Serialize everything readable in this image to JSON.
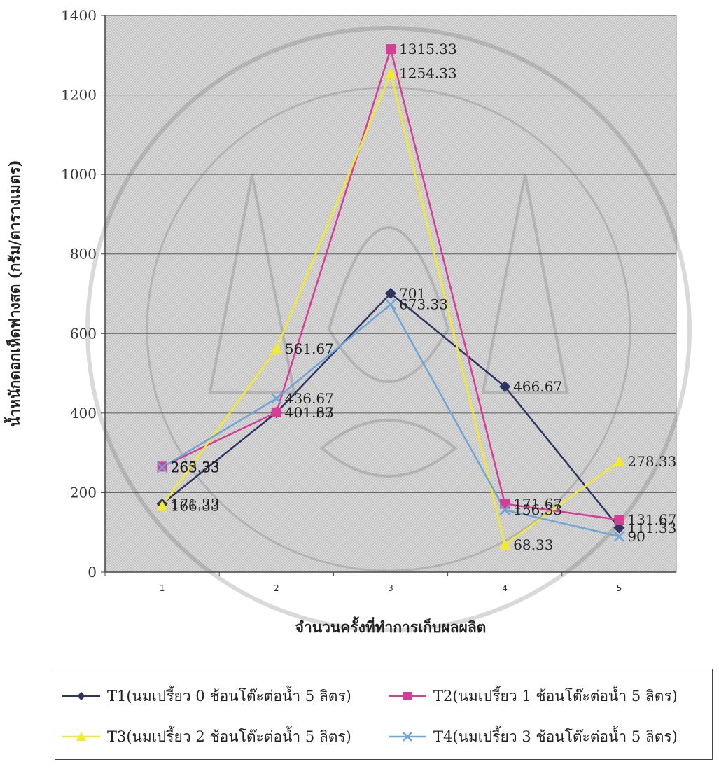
{
  "chart_data": {
    "type": "line",
    "ylabel": "น้ำหนักดอกเห็ดฟางสด (กรัม/ตารางเมตร)",
    "xlabel": "จำนวนครั้งที่ทำการเก็บผลผลิต",
    "categories": [
      "1",
      "2",
      "3",
      "4",
      "5"
    ],
    "ylim": [
      0,
      1400
    ],
    "yticks": [
      "0",
      "200",
      "400",
      "600",
      "800",
      "1000",
      "1200",
      "1400"
    ],
    "grid": true,
    "legend_position": "bottom",
    "series": [
      {
        "name": "T1(นมเปรี้ยว 0 ช้อนโต๊ะต่อน้ำ 5 ลิตร)",
        "values": [
          171.33,
          401.33,
          701,
          466.67,
          111.33
        ],
        "labels": [
          "171.33",
          "401.33",
          "701",
          "466.67",
          "111.33"
        ],
        "color": "#2e3563",
        "marker": "diamond"
      },
      {
        "name": "T2(นมเปรี้ยว 1 ช้อนโต๊ะต่อน้ำ 5 ลิตร)",
        "values": [
          265.33,
          401.67,
          1315.33,
          171.67,
          131.67
        ],
        "labels": [
          "265.33",
          "401.67",
          "1315.33",
          "171.67",
          "131.67"
        ],
        "color": "#d63d95",
        "marker": "square"
      },
      {
        "name": "T3(นมเปรี้ยว 2 ช้อนโต๊ะต่อน้ำ 5 ลิตร)",
        "values": [
          166.33,
          561.67,
          1254.33,
          68.33,
          278.33
        ],
        "labels": [
          "166.33",
          "561.67",
          "1254.33",
          "68.33",
          "278.33"
        ],
        "color": "#f2ea2a",
        "marker": "triangle"
      },
      {
        "name": "T4(นมเปรี้ยว 3 ช้อนโต๊ะต่อน้ำ 5 ลิตร)",
        "values": [
          263.33,
          436.67,
          673.33,
          156.33,
          90
        ],
        "labels": [
          "263.33",
          "436.67",
          "673.33",
          "156.33",
          "90"
        ],
        "color": "#6fa6d6",
        "marker": "x"
      }
    ]
  }
}
